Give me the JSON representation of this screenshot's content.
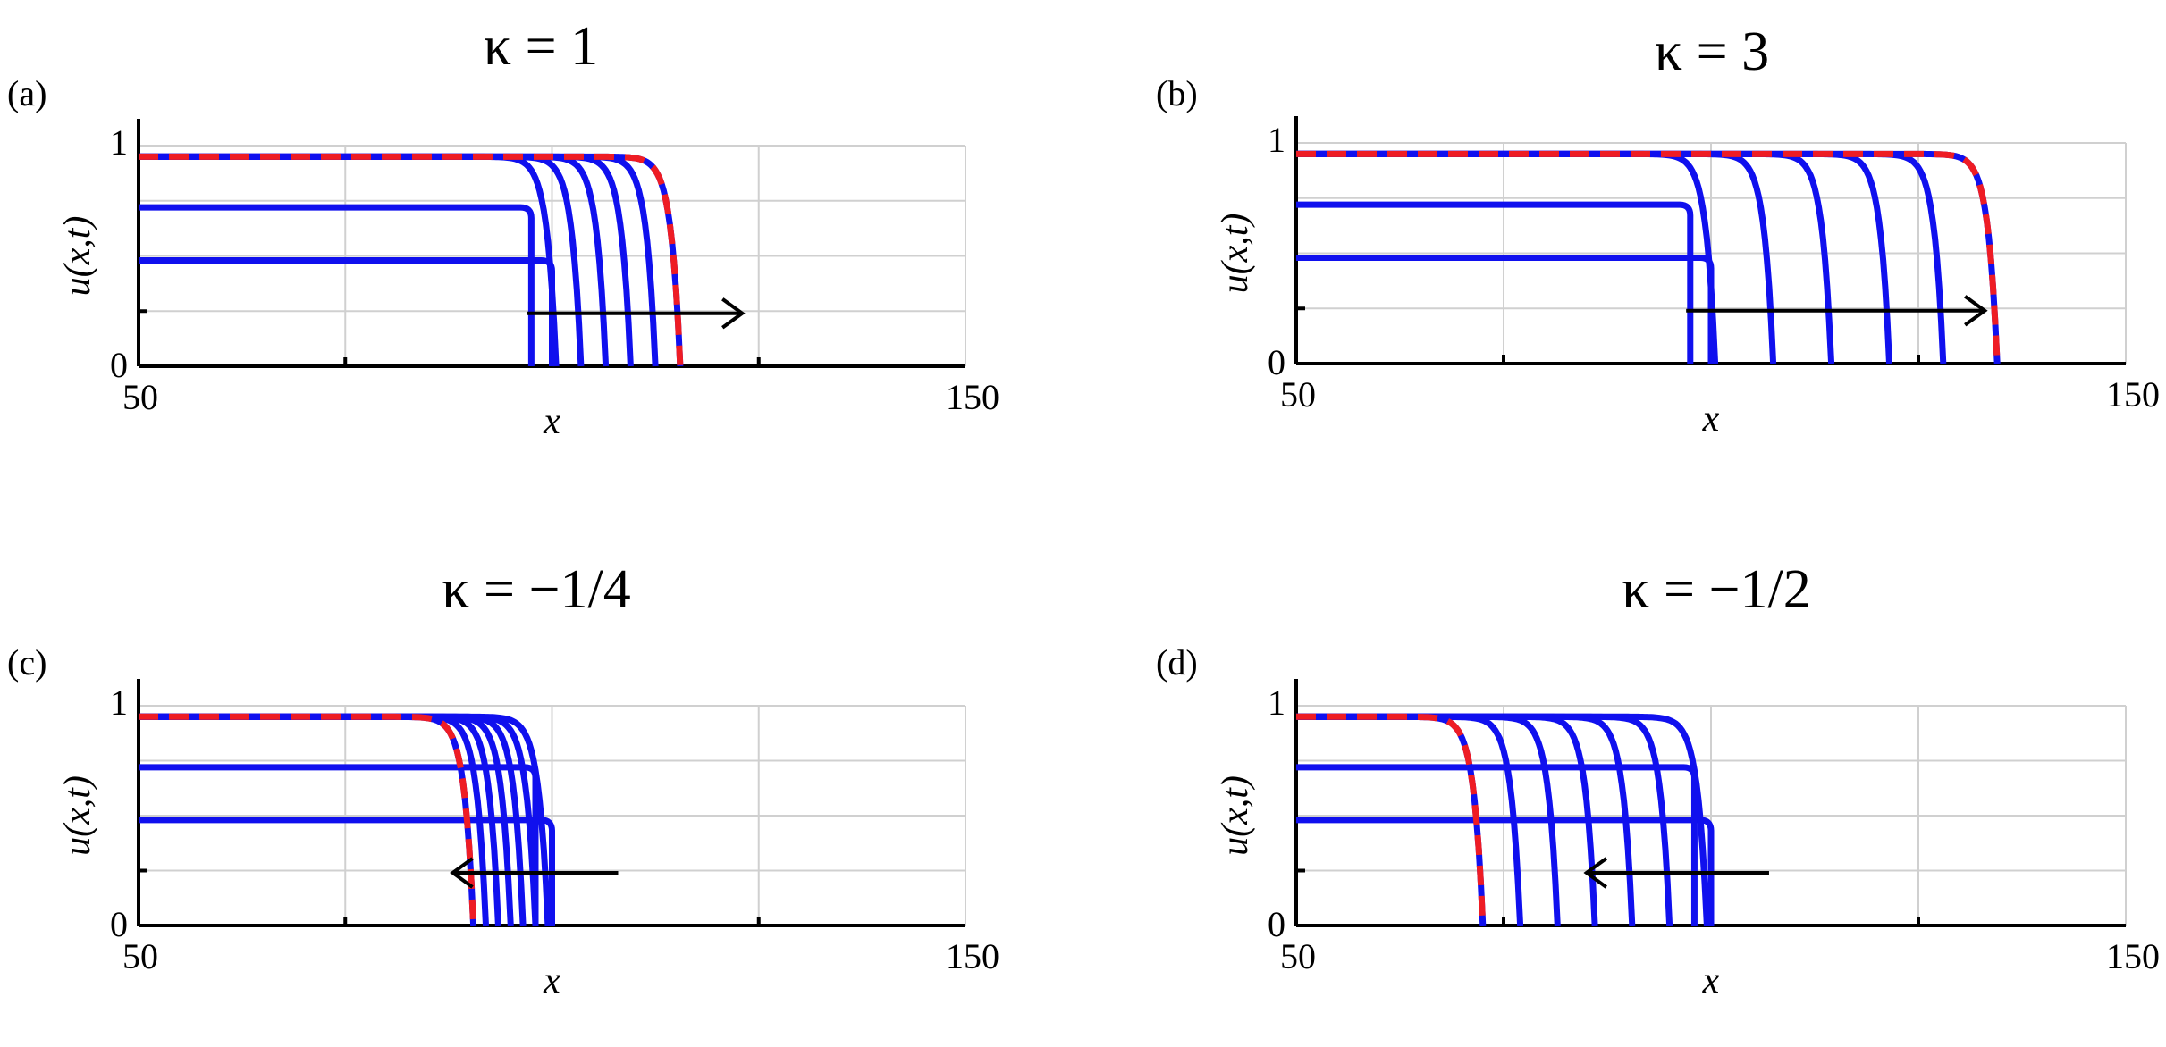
{
  "chart_data": [
    {
      "type": "line",
      "panel_label": "(a)",
      "title": "κ = 1",
      "xlabel": "x",
      "ylabel": "u(x,t)",
      "xlim": [
        50,
        150
      ],
      "ylim": [
        0,
        1
      ],
      "xtick_labels": [
        "50",
        "150"
      ],
      "ytick_labels": [
        "0",
        "1"
      ],
      "grid": true,
      "arrow": {
        "direction": "right",
        "from_x": 97,
        "to_x": 123,
        "y": 0.24
      },
      "initial_profiles": [
        {
          "u_max": 0.48,
          "front_x": 100
        },
        {
          "u_max": 0.72,
          "front_x": 97.5
        }
      ],
      "series": [
        {
          "front_x": 100.5,
          "u_max": 0.95,
          "style": "solid",
          "color": "#1010ee"
        },
        {
          "front_x": 103.5,
          "u_max": 0.95,
          "style": "solid",
          "color": "#1010ee"
        },
        {
          "front_x": 106.5,
          "u_max": 0.95,
          "style": "solid",
          "color": "#1010ee"
        },
        {
          "front_x": 109.5,
          "u_max": 0.95,
          "style": "solid",
          "color": "#1010ee"
        },
        {
          "front_x": 112.5,
          "u_max": 0.95,
          "style": "solid",
          "color": "#1010ee"
        },
        {
          "front_x": 115.5,
          "u_max": 0.95,
          "style": "dashed",
          "color": "#ee1c24"
        }
      ]
    },
    {
      "type": "line",
      "panel_label": "(b)",
      "title": "κ = 3",
      "xlabel": "x",
      "ylabel": "u(x,t)",
      "xlim": [
        50,
        150
      ],
      "ylim": [
        0,
        1
      ],
      "xtick_labels": [
        "50",
        "150"
      ],
      "ytick_labels": [
        "0",
        "1"
      ],
      "grid": true,
      "arrow": {
        "direction": "right",
        "from_x": 97,
        "to_x": 133,
        "y": 0.24
      },
      "initial_profiles": [
        {
          "u_max": 0.48,
          "front_x": 100
        },
        {
          "u_max": 0.72,
          "front_x": 97.5
        }
      ],
      "series": [
        {
          "front_x": 100.5,
          "u_max": 0.95,
          "style": "solid",
          "color": "#1010ee"
        },
        {
          "front_x": 107.5,
          "u_max": 0.95,
          "style": "solid",
          "color": "#1010ee"
        },
        {
          "front_x": 114.5,
          "u_max": 0.95,
          "style": "solid",
          "color": "#1010ee"
        },
        {
          "front_x": 121.5,
          "u_max": 0.95,
          "style": "solid",
          "color": "#1010ee"
        },
        {
          "front_x": 128.0,
          "u_max": 0.95,
          "style": "solid",
          "color": "#1010ee"
        },
        {
          "front_x": 134.5,
          "u_max": 0.95,
          "style": "dashed",
          "color": "#ee1c24"
        }
      ]
    },
    {
      "type": "line",
      "panel_label": "(c)",
      "title": "κ = −1/4",
      "xlabel": "x",
      "ylabel": "u(x,t)",
      "xlim": [
        50,
        150
      ],
      "ylim": [
        0,
        1
      ],
      "xtick_labels": [
        "50",
        "150"
      ],
      "ytick_labels": [
        "0",
        "1"
      ],
      "grid": true,
      "arrow": {
        "direction": "left",
        "from_x": 108,
        "to_x": 88,
        "y": 0.24
      },
      "initial_profiles": [
        {
          "u_max": 0.48,
          "front_x": 100
        },
        {
          "u_max": 0.72,
          "front_x": 98
        }
      ],
      "series": [
        {
          "front_x": 99.5,
          "u_max": 0.95,
          "style": "solid",
          "color": "#1010ee"
        },
        {
          "front_x": 98.0,
          "u_max": 0.95,
          "style": "solid",
          "color": "#1010ee"
        },
        {
          "front_x": 96.5,
          "u_max": 0.95,
          "style": "solid",
          "color": "#1010ee"
        },
        {
          "front_x": 95.0,
          "u_max": 0.95,
          "style": "solid",
          "color": "#1010ee"
        },
        {
          "front_x": 93.5,
          "u_max": 0.95,
          "style": "solid",
          "color": "#1010ee"
        },
        {
          "front_x": 92.0,
          "u_max": 0.95,
          "style": "solid",
          "color": "#1010ee"
        },
        {
          "front_x": 90.5,
          "u_max": 0.95,
          "style": "dashed",
          "color": "#ee1c24"
        }
      ]
    },
    {
      "type": "line",
      "panel_label": "(d)",
      "title": "κ = −1/2",
      "xlabel": "x",
      "ylabel": "u(x,t)",
      "xlim": [
        50,
        150
      ],
      "ylim": [
        0,
        1
      ],
      "xtick_labels": [
        "50",
        "150"
      ],
      "ytick_labels": [
        "0",
        "1"
      ],
      "grid": true,
      "arrow": {
        "direction": "left",
        "from_x": 107,
        "to_x": 85,
        "y": 0.24
      },
      "initial_profiles": [
        {
          "u_max": 0.48,
          "front_x": 100
        },
        {
          "u_max": 0.72,
          "front_x": 98
        }
      ],
      "series": [
        {
          "front_x": 99.5,
          "u_max": 0.95,
          "style": "solid",
          "color": "#1010ee"
        },
        {
          "front_x": 95.0,
          "u_max": 0.95,
          "style": "solid",
          "color": "#1010ee"
        },
        {
          "front_x": 90.5,
          "u_max": 0.95,
          "style": "solid",
          "color": "#1010ee"
        },
        {
          "front_x": 86.0,
          "u_max": 0.95,
          "style": "solid",
          "color": "#1010ee"
        },
        {
          "front_x": 81.5,
          "u_max": 0.95,
          "style": "solid",
          "color": "#1010ee"
        },
        {
          "front_x": 77.0,
          "u_max": 0.95,
          "style": "solid",
          "color": "#1010ee"
        },
        {
          "front_x": 72.5,
          "u_max": 0.95,
          "style": "dashed",
          "color": "#ee1c24"
        }
      ]
    }
  ]
}
